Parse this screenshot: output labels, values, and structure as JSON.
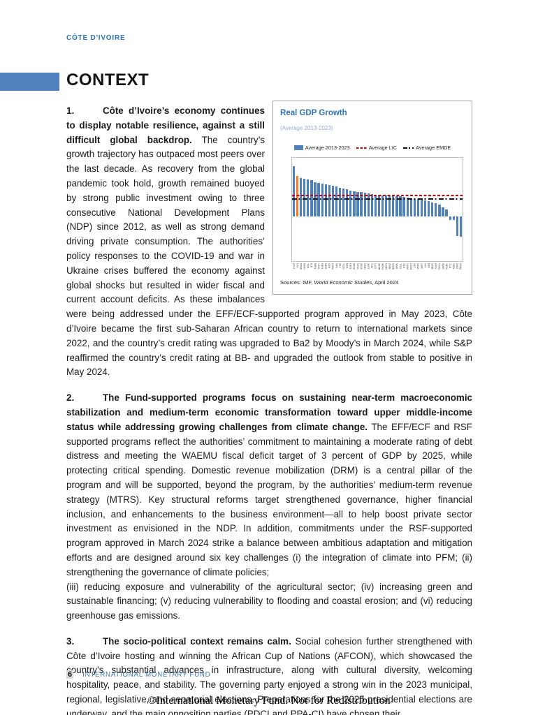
{
  "page": {
    "eyebrow": "CÔTE D'IVOIRE",
    "section_title": "CONTEXT",
    "footer": {
      "page_number": "6",
      "organization": "INTERNATIONAL MONETARY FUND"
    },
    "copyright": "©International Monetary Fund. Not for Redistribution"
  },
  "paragraphs": {
    "p1": {
      "number": "1.",
      "lead": "Côte d’Ivoire’s economy continues to display notable resilience, against a still difficult global backdrop.",
      "body": "The country’s growth trajectory has outpaced most peers over the last decade. As recovery from the global pandemic took hold, growth remained buoyed by strong public investment owing to three consecutive National Development Plans (NDP) since 2012, as well as strong demand driving private consumption. The authorities’ policy responses to the COVID-19 and war in Ukraine crises buffered the economy against global shocks but resulted in wider fiscal and current account deficits. As these imbalances were being addressed under the EFF/ECF-supported program approved in May 2023, Côte d’Ivoire became the first sub-Saharan African country to return to international markets since 2022, and the country’s credit rating was upgraded to Ba2 by Moody’s in March 2024, while S&P reaffirmed the country’s credit rating at BB- and upgraded the outlook from stable to positive in May 2024."
    },
    "p2": {
      "number": "2.",
      "lead": "The Fund-supported programs focus on sustaining near-term macroeconomic stabilization and medium-term economic transformation toward upper middle-income status while addressing growing challenges from climate change.",
      "body": "The EFF/ECF and RSF supported programs reflect the authorities’ commitment to maintaining a moderate rating of debt distress and meeting the WAEMU fiscal deficit target of 3 percent of GDP by 2025, while protecting critical spending. Domestic revenue mobilization (DRM) is a central pillar of the program and will be supported, beyond the program, by the authorities’ medium-term revenue strategy (MTRS). Key structural reforms target strengthened governance, higher financial inclusion, and enhancements to the business environment—all to help boost private sector investment as envisioned in the NDP. In addition, commitments under the RSF-supported program approved in March 2024 strike a balance between ambitious adaptation and mitigation efforts and are designed around six key challenges (i) the integration of climate into PFM; (ii) strengthening the governance of climate policies;",
      "body2": "(iii) reducing exposure and vulnerability of the agricultural sector; (iv) increasing green and sustainable financing; (v) reducing vulnerability to flooding and coastal erosion; and (vi) reducing greenhouse gas emissions."
    },
    "p3": {
      "number": "3.",
      "lead": "The socio-political context remains calm.",
      "body": "Social cohesion further strengthened with Côte d’Ivoire hosting and winning the African Cup of Nations (AFCON), which showcased the country’s substantial advances in infrastructure, along with cultural diversity, welcoming hospitality, peace, and stability. The governing party enjoyed a strong win in the 2023 municipal, regional, legislative, and senatorial elections. Preparations for the 2025 presidential elections are underway, and the main opposition parties (PDCI and PPA-CI) have chosen their"
    }
  },
  "chart_data": {
    "type": "bar",
    "title": "Real GDP Growth",
    "subtitle": "(Average 2013-2023)",
    "legend": [
      "Average 2013-2023",
      "Average LIC",
      "Average EMDE"
    ],
    "categories": [
      "ETH",
      "CIV",
      "RWA",
      "BGD",
      "TZA",
      "DJI",
      "BEN",
      "UGA",
      "SEN",
      "NER",
      "GIN",
      "KHM",
      "NPL",
      "MLI",
      "TGO",
      "BFA",
      "KEN",
      "MOZ",
      "GHA",
      "MDA",
      "HND",
      "MRT",
      "TJK",
      "LAO",
      "MMR",
      "MDG",
      "CMR",
      "ZMB",
      "GMB",
      "MWI",
      "TCD",
      "SLE",
      "VNM",
      "COM",
      "NIC",
      "NGA",
      "LBR",
      "HTI",
      "BDI",
      "GNB",
      "AFG",
      "COG",
      "ZWE",
      "YEM",
      "TLS",
      "SDN",
      "SSD",
      "GNQ"
    ],
    "values": [
      8.6,
      6.9,
      6.5,
      6.4,
      6.3,
      6.2,
      5.8,
      5.7,
      5.6,
      5.5,
      5.4,
      5.2,
      5.1,
      4.9,
      4.7,
      4.6,
      4.4,
      4.3,
      4.2,
      4.1,
      4.0,
      3.9,
      3.8,
      3.7,
      3.7,
      3.6,
      3.6,
      3.5,
      3.5,
      3.4,
      3.4,
      3.3,
      3.2,
      3.1,
      3.0,
      2.9,
      2.8,
      2.7,
      2.6,
      2.4,
      2.2,
      2.0,
      1.5,
      1.2,
      -0.6,
      -0.7,
      -3.4,
      -3.6
    ],
    "highlight_index": 1,
    "ref_lines": [
      {
        "name": "Average LIC",
        "value": 3.6,
        "style": "red-dashed"
      },
      {
        "name": "Average EMDE",
        "value": 2.9,
        "style": "black-dashdot"
      }
    ],
    "yticks": [
      9,
      7,
      5,
      3,
      1,
      -1,
      -3,
      -5,
      -7
    ],
    "ylim": [
      -7.8,
      10
    ],
    "grid": false,
    "legend_position": "top",
    "source": "Sources: IMF, World Economic Studies, April 2024",
    "colors": {
      "bar": "#4F81BD",
      "highlight": "#ED7D31",
      "lic_line": "#D00000",
      "emde_line": "#111111",
      "title": "#2E74B5",
      "accent": "#4E81BD"
    }
  }
}
